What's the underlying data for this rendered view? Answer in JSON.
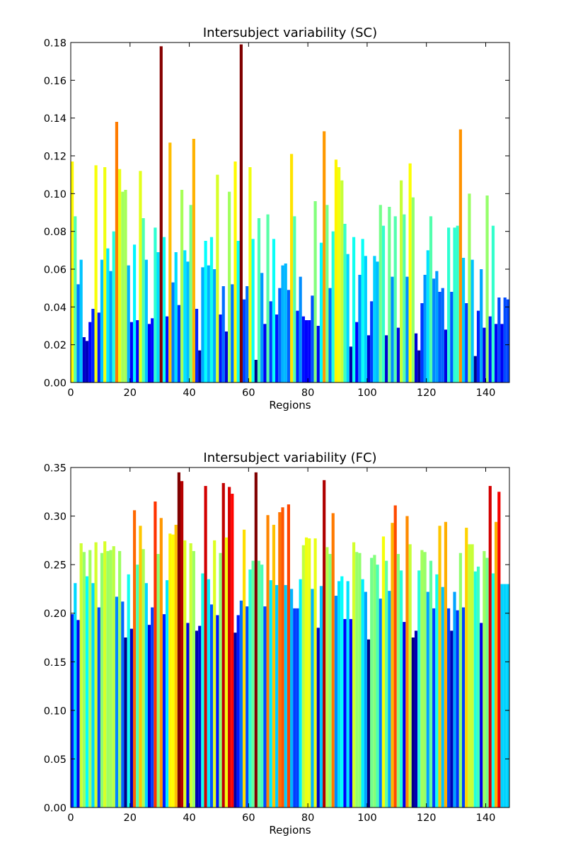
{
  "chart_data": [
    {
      "type": "bar",
      "title": "Intersubject variability (SC)",
      "xlabel": "Regions",
      "ylabel": "",
      "xlim": [
        0,
        148
      ],
      "ylim": [
        0,
        0.18
      ],
      "xticks": [
        0,
        20,
        40,
        60,
        80,
        100,
        120,
        140
      ],
      "yticks": [
        0.0,
        0.02,
        0.04,
        0.06,
        0.08,
        0.1,
        0.12,
        0.14,
        0.16,
        0.18
      ],
      "colormap": "jet",
      "grid": false,
      "legend": "none",
      "x": [
        0,
        1,
        2,
        3,
        4,
        5,
        6,
        7,
        8,
        9,
        10,
        11,
        12,
        13,
        14,
        15,
        16,
        17,
        18,
        19,
        20,
        21,
        22,
        23,
        24,
        25,
        26,
        27,
        28,
        29,
        30,
        31,
        32,
        33,
        34,
        35,
        36,
        37,
        38,
        39,
        40,
        41,
        42,
        43,
        44,
        45,
        46,
        47,
        48,
        49,
        50,
        51,
        52,
        53,
        54,
        55,
        56,
        57,
        58,
        59,
        60,
        61,
        62,
        63,
        64,
        65,
        66,
        67,
        68,
        69,
        70,
        71,
        72,
        73,
        74,
        75,
        76,
        77,
        78,
        79,
        80,
        81,
        82,
        83,
        84,
        85,
        86,
        87,
        88,
        89,
        90,
        91,
        92,
        93,
        94,
        95,
        96,
        97,
        98,
        99,
        100,
        101,
        102,
        103,
        104,
        105,
        106,
        107,
        108,
        109,
        110,
        111,
        112,
        113,
        114,
        115,
        116,
        117,
        118,
        119,
        120,
        121,
        122,
        123,
        124,
        125,
        126,
        127,
        128,
        129,
        130,
        131,
        132,
        133,
        134,
        135,
        136,
        137,
        138,
        139,
        140,
        141,
        142,
        143,
        144,
        145,
        146,
        147
      ],
      "values": [
        0.117,
        0.088,
        0.052,
        0.065,
        0.024,
        0.022,
        0.032,
        0.039,
        0.115,
        0.037,
        0.065,
        0.114,
        0.071,
        0.059,
        0.08,
        0.138,
        0.113,
        0.101,
        0.102,
        0.062,
        0.032,
        0.073,
        0.033,
        0.112,
        0.087,
        0.065,
        0.031,
        0.034,
        0.082,
        0.069,
        0.178,
        0.077,
        0.035,
        0.127,
        0.053,
        0.069,
        0.041,
        0.102,
        0.07,
        0.064,
        0.094,
        0.129,
        0.039,
        0.017,
        0.061,
        0.075,
        0.062,
        0.077,
        0.06,
        0.11,
        0.036,
        0.051,
        0.027,
        0.101,
        0.052,
        0.117,
        0.075,
        0.179,
        0.044,
        0.051,
        0.114,
        0.076,
        0.012,
        0.087,
        0.058,
        0.031,
        0.089,
        0.043,
        0.076,
        0.036,
        0.05,
        0.062,
        0.063,
        0.049,
        0.121,
        0.088,
        0.038,
        0.056,
        0.035,
        0.033,
        0.033,
        0.046,
        0.096,
        0.03,
        0.074,
        0.133,
        0.094,
        0.05,
        0.08,
        0.118,
        0.114,
        0.107,
        0.084,
        0.068,
        0.019,
        0.077,
        0.032,
        0.057,
        0.076,
        0.067,
        0.025,
        0.043,
        0.067,
        0.064,
        0.094,
        0.083,
        0.025,
        0.093,
        0.056,
        0.088,
        0.029,
        0.107,
        0.089,
        0.056,
        0.116,
        0.098,
        0.026,
        0.017,
        0.042,
        0.057,
        0.07,
        0.088,
        0.055,
        0.059,
        0.048,
        0.05,
        0.028,
        0.082,
        0.048,
        0.082,
        0.083,
        0.134,
        0.066,
        0.042,
        0.1,
        0.065,
        0.014,
        0.038,
        0.06,
        0.029,
        0.099,
        0.035,
        0.083,
        0.031,
        0.045,
        0.031,
        0.045,
        0.044
      ]
    },
    {
      "type": "bar",
      "title": "Intersubject variability (FC)",
      "xlabel": "Regions",
      "ylabel": "",
      "xlim": [
        0,
        148
      ],
      "ylim": [
        0,
        0.35
      ],
      "xticks": [
        0,
        20,
        40,
        60,
        80,
        100,
        120,
        140
      ],
      "yticks": [
        0.0,
        0.05,
        0.1,
        0.15,
        0.2,
        0.25,
        0.3,
        0.35
      ],
      "colormap": "jet",
      "grid": false,
      "legend": "none",
      "x": [
        0,
        1,
        2,
        3,
        4,
        5,
        6,
        7,
        8,
        9,
        10,
        11,
        12,
        13,
        14,
        15,
        16,
        17,
        18,
        19,
        20,
        21,
        22,
        23,
        24,
        25,
        26,
        27,
        28,
        29,
        30,
        31,
        32,
        33,
        34,
        35,
        36,
        37,
        38,
        39,
        40,
        41,
        42,
        43,
        44,
        45,
        46,
        47,
        48,
        49,
        50,
        51,
        52,
        53,
        54,
        55,
        56,
        57,
        58,
        59,
        60,
        61,
        62,
        63,
        64,
        65,
        66,
        67,
        68,
        69,
        70,
        71,
        72,
        73,
        74,
        75,
        76,
        77,
        78,
        79,
        80,
        81,
        82,
        83,
        84,
        85,
        86,
        87,
        88,
        89,
        90,
        91,
        92,
        93,
        94,
        95,
        96,
        97,
        98,
        99,
        100,
        101,
        102,
        103,
        104,
        105,
        106,
        107,
        108,
        109,
        110,
        111,
        112,
        113,
        114,
        115,
        116,
        117,
        118,
        119,
        120,
        121,
        122,
        123,
        124,
        125,
        126,
        127,
        128,
        129,
        130,
        131,
        132,
        133,
        134,
        135,
        136,
        137,
        138,
        139,
        140,
        141,
        142,
        143,
        144,
        145,
        146,
        147
      ],
      "values": [
        0.199,
        0.231,
        0.193,
        0.272,
        0.263,
        0.238,
        0.265,
        0.231,
        0.273,
        0.206,
        0.262,
        0.274,
        0.264,
        0.265,
        0.269,
        0.217,
        0.264,
        0.212,
        0.175,
        0.24,
        0.184,
        0.306,
        0.25,
        0.29,
        0.266,
        0.231,
        0.188,
        0.206,
        0.315,
        0.261,
        0.298,
        0.199,
        0.234,
        0.282,
        0.281,
        0.291,
        0.345,
        0.336,
        0.275,
        0.19,
        0.272,
        0.264,
        0.182,
        0.187,
        0.241,
        0.331,
        0.235,
        0.209,
        0.275,
        0.198,
        0.262,
        0.334,
        0.278,
        0.33,
        0.323,
        0.18,
        0.198,
        0.213,
        0.286,
        0.207,
        0.245,
        0.254,
        0.345,
        0.254,
        0.25,
        0.207,
        0.301,
        0.234,
        0.291,
        0.229,
        0.304,
        0.309,
        0.229,
        0.312,
        0.225,
        0.205,
        0.205,
        0.235,
        0.27,
        0.278,
        0.277,
        0.225,
        0.277,
        0.185,
        0.228,
        0.337,
        0.268,
        0.261,
        0.303,
        0.218,
        0.233,
        0.238,
        0.194,
        0.233,
        0.194,
        0.273,
        0.263,
        0.262,
        0.235,
        0.222,
        0.173,
        0.257,
        0.26,
        0.25,
        0.215,
        0.279,
        0.254,
        0.223,
        0.293,
        0.311,
        0.261,
        0.244,
        0.191,
        0.3,
        0.271,
        0.175,
        0.182,
        0.244,
        0.265,
        0.263,
        0.222,
        0.254,
        0.205,
        0.24,
        0.29,
        0.227,
        0.294,
        0.205,
        0.182,
        0.222,
        0.203,
        0.262,
        0.206,
        0.288,
        0.271,
        0.271,
        0.243,
        0.248,
        0.19,
        0.264,
        0.257,
        0.331,
        0.241,
        0.294,
        0.325,
        0.23,
        0.23,
        0.23
      ]
    }
  ]
}
